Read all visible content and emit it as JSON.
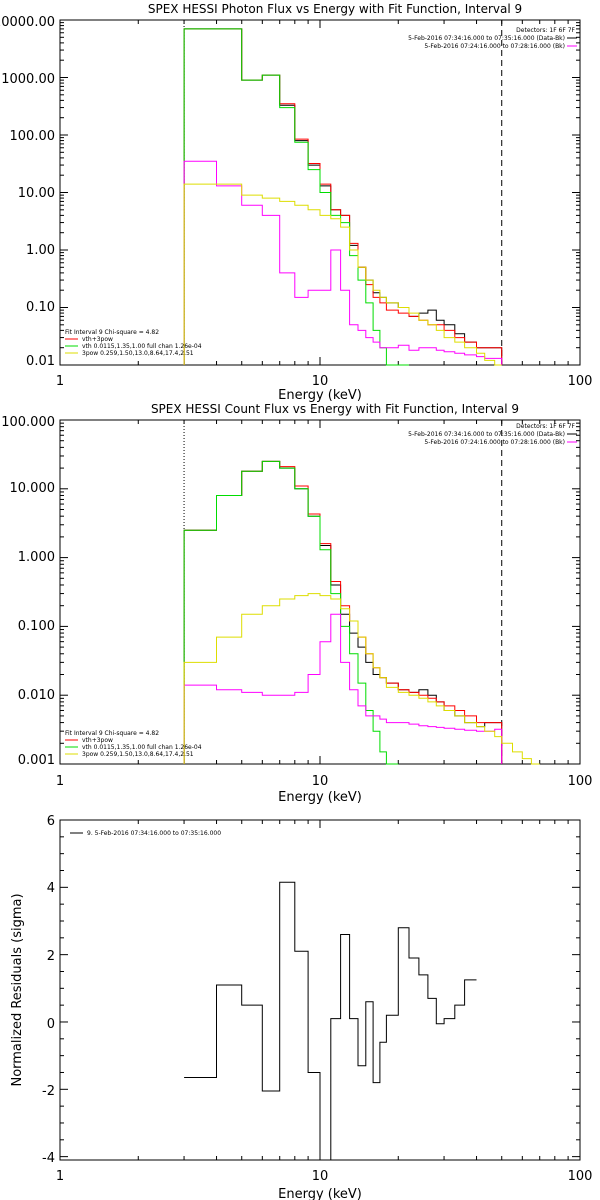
{
  "chart_data": [
    {
      "type": "line",
      "title": "SPEX HESSI Photon Flux vs Energy with Fit Function, Interval 9",
      "xlabel": "Energy (keV)",
      "ylabel": "",
      "xlog": true,
      "ylog": true,
      "xlim": [
        1,
        100
      ],
      "ylim": [
        0.01,
        10000
      ],
      "xtick_labels": [
        "1",
        "10",
        "100"
      ],
      "xticks": [
        1,
        10,
        100
      ],
      "yticks": [
        0.01,
        0.1,
        1,
        10,
        100,
        1000,
        10000
      ],
      "ytick_labels": [
        "0.01",
        "0.10",
        "1.00",
        "10.00",
        "100.00",
        "1000.00",
        "10000.00"
      ],
      "edges": [
        3.0,
        4.0,
        5.0,
        6.0,
        7.0,
        8.0,
        9.0,
        10.0,
        11.0,
        12.0,
        13.0,
        14.0,
        15.0,
        16.0,
        17.0,
        18.0,
        20.0,
        22.0,
        24.0,
        26.0,
        28.0,
        30.0,
        33.0,
        36.0,
        40.0,
        43.0,
        47.0,
        50.0
      ],
      "markers": {
        "dotted": 3.0,
        "dashed": 50.0
      },
      "series": [
        {
          "color": "#000000",
          "values": [
            7000,
            7000,
            900,
            1100,
            330,
            80,
            30,
            13,
            5,
            4,
            1.2,
            0.5,
            0.3,
            0.18,
            0.15,
            0.12,
            0.1,
            0.07,
            0.08,
            0.09,
            0.06,
            0.05,
            0.035,
            0.025,
            0.02,
            0.02,
            0.02
          ]
        },
        {
          "color": "#ff0000",
          "values": [
            7000,
            7000,
            900,
            1100,
            350,
            85,
            32,
            14,
            5,
            4,
            1.3,
            0.5,
            0.25,
            0.15,
            0.12,
            0.09,
            0.08,
            0.07,
            0.06,
            0.05,
            0.05,
            0.04,
            0.03,
            0.025,
            0.02,
            0.02,
            0.02
          ]
        },
        {
          "color": "#00dd00",
          "values": [
            7000,
            7000,
            900,
            1100,
            300,
            75,
            25,
            10,
            4,
            3,
            0.8,
            0.3,
            0.12,
            0.04,
            0.02,
            0.01,
            0.008,
            null,
            null,
            null,
            null,
            null,
            null,
            null,
            null,
            null,
            null
          ]
        },
        {
          "color": "#ff00ff",
          "values": [
            35,
            13,
            6,
            4,
            0.4,
            0.15,
            0.2,
            0.2,
            1.0,
            0.2,
            0.05,
            0.04,
            0.03,
            0.025,
            0.02,
            0.02,
            0.022,
            0.018,
            0.02,
            0.02,
            0.018,
            0.017,
            0.016,
            0.015,
            0.014,
            0.013,
            0.013
          ]
        },
        {
          "color": "#dddd00",
          "values": [
            14,
            14,
            9,
            8,
            7,
            6,
            5,
            4,
            3.5,
            2.5,
            1.0,
            0.5,
            0.3,
            0.2,
            0.15,
            0.12,
            0.1,
            0.08,
            0.06,
            0.05,
            0.04,
            0.03,
            0.025,
            0.02,
            0.016,
            0.012,
            0.009
          ]
        }
      ],
      "legend_right": {
        "line1": "Detectors: 1F 6F 7F",
        "line2": "5-Feb-2016 07:34:16.000 to 07:35:16.000 (Data-Bk)",
        "line3": "5-Feb-2016 07:24:16.000 to 07:28:16.000 (Bk)"
      },
      "legend_left": {
        "header": "Fit Interval 9   Chi-square = 4.82",
        "item1": "vth+3pow",
        "item2": "vth 0.0115,1.35,1.00   full chan 1.26e-04",
        "item3": "3pow 0.259,1.50,13.0,8.64,17.4,2.51"
      }
    },
    {
      "type": "line",
      "title": "SPEX HESSI Count Flux vs Energy with Fit Function, Interval 9",
      "xlabel": "Energy (keV)",
      "ylabel": "",
      "xlog": true,
      "ylog": true,
      "xlim": [
        1,
        100
      ],
      "ylim": [
        0.001,
        100
      ],
      "xtick_labels": [
        "1",
        "10",
        "100"
      ],
      "xticks": [
        1,
        10,
        100
      ],
      "yticks": [
        0.001,
        0.01,
        0.1,
        1,
        10,
        100
      ],
      "ytick_labels": [
        "0.001",
        "0.010",
        "0.100",
        "1.000",
        "10.000",
        "100.000"
      ],
      "edges": [
        3.0,
        4.0,
        5.0,
        6.0,
        7.0,
        8.0,
        9.0,
        10.0,
        11.0,
        12.0,
        13.0,
        14.0,
        15.0,
        16.0,
        17.0,
        18.0,
        20.0,
        22.0,
        24.0,
        26.0,
        28.0,
        30.0,
        33.0,
        36.0,
        40.0,
        43.0,
        47.0,
        50.0,
        55.0,
        60.0,
        65.0,
        70.0
      ],
      "markers": {
        "dotted": 3.0,
        "dashed": 50.0
      },
      "series": [
        {
          "color": "#000000",
          "values": [
            2.5,
            8,
            18,
            25,
            20,
            10,
            4,
            1.5,
            0.4,
            0.15,
            0.08,
            0.05,
            0.03,
            0.02,
            0.018,
            0.015,
            0.012,
            0.011,
            0.012,
            0.01,
            0.008,
            0.006,
            0.005,
            0.004,
            0.0035,
            0.004,
            0.004,
            null,
            null,
            null,
            null
          ]
        },
        {
          "color": "#ff0000",
          "values": [
            2.5,
            8,
            18,
            25,
            21,
            11,
            4.3,
            1.6,
            0.45,
            0.2,
            0.12,
            0.07,
            0.04,
            0.025,
            0.018,
            0.015,
            0.012,
            0.011,
            0.01,
            0.009,
            0.008,
            0.007,
            0.006,
            0.005,
            0.004,
            0.004,
            0.004,
            null,
            null,
            null,
            null
          ]
        },
        {
          "color": "#00dd00",
          "values": [
            2.5,
            8,
            18,
            25,
            20,
            10,
            4,
            1.3,
            0.3,
            0.1,
            0.04,
            0.015,
            0.006,
            0.003,
            0.0015,
            0.001,
            null,
            null,
            null,
            null,
            null,
            null,
            null,
            null,
            null,
            null,
            null,
            null,
            null,
            null,
            null
          ]
        },
        {
          "color": "#ff00ff",
          "values": [
            0.014,
            0.012,
            0.011,
            0.01,
            0.01,
            0.011,
            0.02,
            0.06,
            0.15,
            0.03,
            0.012,
            0.007,
            0.005,
            0.005,
            0.0045,
            0.004,
            0.004,
            0.0038,
            0.0036,
            0.0035,
            0.0034,
            0.0033,
            0.0032,
            0.0031,
            0.003,
            0.003,
            0.0032,
            null,
            null,
            null,
            null
          ]
        },
        {
          "color": "#dddd00",
          "values": [
            0.03,
            0.07,
            0.15,
            0.2,
            0.25,
            0.28,
            0.3,
            0.28,
            0.25,
            0.18,
            0.12,
            0.07,
            0.04,
            0.025,
            0.018,
            0.013,
            0.011,
            0.01,
            0.009,
            0.008,
            0.007,
            0.006,
            0.005,
            0.004,
            0.0035,
            0.003,
            0.0025,
            0.002,
            0.0015,
            0.0012,
            0.001
          ]
        }
      ],
      "legend_right": {
        "line1": "Detectors: 1F 6F 7F",
        "line2": "5-Feb-2016 07:34:16.000 to 07:35:16.000 (Data-Bk)",
        "line3": "5-Feb-2016 07:24:16.000 to 07:28:16.000 (Bk)"
      },
      "legend_left": {
        "header": "Fit Interval 9   Chi-square = 4.82",
        "item1": "vth+3pow",
        "item2": "vth 0.0115,1.35,1.00   full chan 1.26e-04",
        "item3": "3pow 0.259,1.50,13.0,8.64,17.4,2.51"
      }
    },
    {
      "type": "line",
      "title": "",
      "xlabel": "Energy (keV)",
      "ylabel": "Normalized Residuals (sigma)",
      "xlog": true,
      "ylog": false,
      "xlim": [
        1,
        100
      ],
      "ylim": [
        -4.1,
        6
      ],
      "xtick_labels": [
        "1",
        "10",
        "100"
      ],
      "xticks": [
        1,
        10,
        100
      ],
      "yticks": [
        -4,
        -2,
        0,
        2,
        4,
        6
      ],
      "ytick_labels": [
        "-4",
        "-2",
        "0",
        "2",
        "4",
        "6"
      ],
      "edges": [
        3.0,
        4.0,
        5.0,
        6.0,
        7.0,
        8.0,
        9.0,
        10.0,
        11.0,
        12.0,
        13.0,
        14.0,
        15.0,
        16.0,
        17.0,
        18.0,
        20.0,
        22.0,
        24.0,
        26.0,
        28.0,
        30.0,
        33.0,
        36.0,
        40.0,
        43.0,
        47.0,
        50.0
      ],
      "series": [
        {
          "color": "#000000",
          "values": [
            -1.65,
            1.1,
            0.5,
            -2.05,
            4.15,
            2.1,
            -1.5,
            -4.1,
            0.1,
            2.6,
            0.1,
            -1.3,
            0.6,
            -1.8,
            -0.6,
            0.2,
            2.8,
            1.9,
            1.4,
            0.7,
            -0.05,
            0.1,
            0.5,
            1.25,
            null,
            null,
            null
          ]
        }
      ],
      "legend_text": "9.  5-Feb-2016 07:34:16.000 to 07:35:16.000"
    }
  ]
}
